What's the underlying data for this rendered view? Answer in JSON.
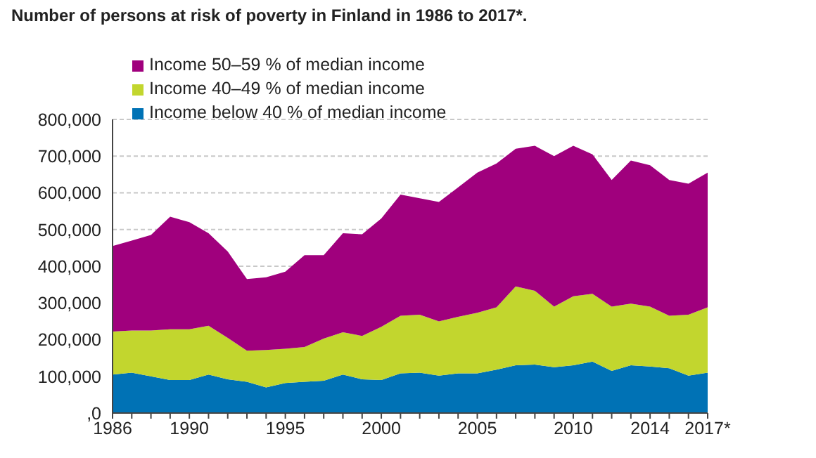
{
  "chart_data": {
    "type": "area",
    "title": "Number of persons at risk of poverty in Finland in 1986 to 2017*.",
    "stacked": true,
    "categories": [
      "1986",
      null,
      null,
      null,
      "1990",
      null,
      null,
      null,
      null,
      "1995",
      null,
      null,
      null,
      null,
      "2000",
      null,
      null,
      null,
      null,
      "2005",
      null,
      null,
      null,
      null,
      "2010",
      null,
      null,
      null,
      "2014",
      null,
      null,
      "2017*"
    ],
    "series": [
      {
        "name": "Income below 40 % of median income",
        "color": "#0072b5",
        "values": [
          105000,
          110000,
          100000,
          90000,
          90000,
          105000,
          92000,
          85000,
          70000,
          82000,
          85000,
          88000,
          105000,
          92000,
          90000,
          108000,
          110000,
          102000,
          108000,
          108000,
          118000,
          130000,
          132000,
          125000,
          130000,
          140000,
          115000,
          130000,
          127000,
          122000,
          102000,
          110000
        ]
      },
      {
        "name": "Income 40–49 % of median income",
        "color": "#c2d62e",
        "values": [
          117000,
          115000,
          125000,
          138000,
          138000,
          133000,
          113000,
          85000,
          102000,
          93000,
          95000,
          115000,
          115000,
          118000,
          145000,
          157000,
          158000,
          148000,
          154000,
          165000,
          170000,
          215000,
          201000,
          165000,
          188000,
          185000,
          175000,
          168000,
          163000,
          143000,
          166000,
          178000
        ]
      },
      {
        "name": "Income 50–59 % of median income",
        "color": "#a0007d",
        "values": [
          233000,
          245000,
          260000,
          307000,
          292000,
          252000,
          235000,
          195000,
          198000,
          210000,
          250000,
          227000,
          270000,
          277000,
          295000,
          330000,
          317000,
          325000,
          353000,
          382000,
          392000,
          375000,
          395000,
          410000,
          410000,
          380000,
          345000,
          390000,
          385000,
          370000,
          357000,
          367000
        ]
      }
    ],
    "ylim": [
      0,
      800000
    ],
    "yticks": [
      {
        "value": 0,
        "label": ",0"
      },
      {
        "value": 100000,
        "label": "100,000"
      },
      {
        "value": 200000,
        "label": "200,000"
      },
      {
        "value": 300000,
        "label": "300,000"
      },
      {
        "value": 400000,
        "label": "400,000"
      },
      {
        "value": 500000,
        "label": "500,000"
      },
      {
        "value": 600000,
        "label": "600,000"
      },
      {
        "value": 700000,
        "label": "700,000"
      },
      {
        "value": 800000,
        "label": "800,000"
      }
    ],
    "grid": "y",
    "legend": "top left"
  }
}
